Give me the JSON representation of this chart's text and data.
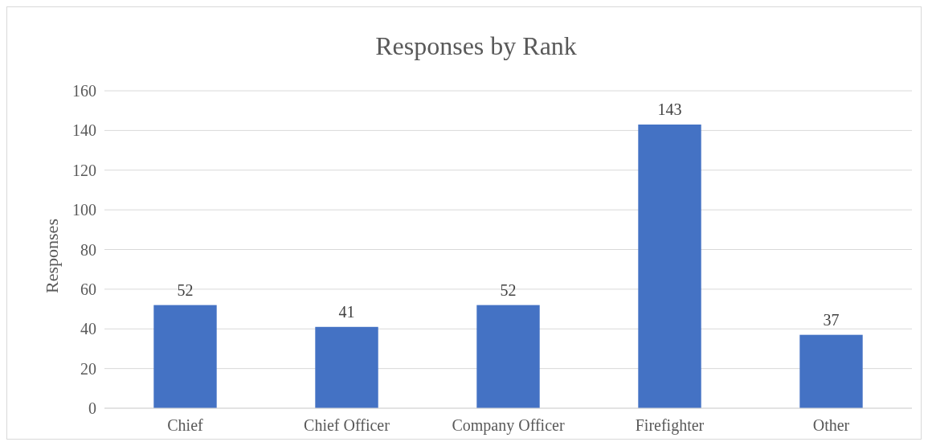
{
  "chart_data": {
    "type": "bar",
    "title": "Responses by Rank",
    "ylabel": "Responses",
    "categories": [
      "Chief",
      "Chief Officer",
      "Company Officer",
      "Firefighter",
      "Other"
    ],
    "values": [
      52,
      41,
      52,
      143,
      37
    ],
    "color": "#4472c4",
    "ylim": [
      0,
      160
    ],
    "yticks": [
      0,
      20,
      40,
      60,
      80,
      100,
      120,
      140,
      160
    ],
    "grid": "y",
    "data_labels": true
  }
}
